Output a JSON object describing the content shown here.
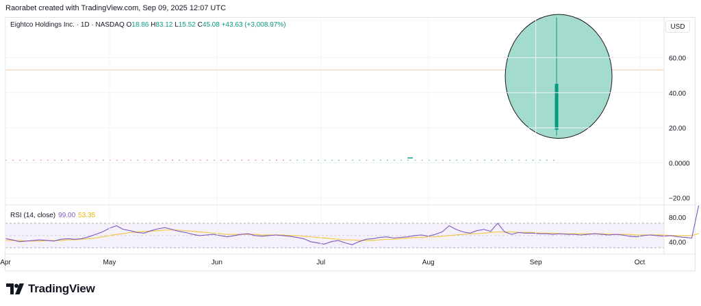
{
  "header": {
    "text": "Raorabet created with TradingView.com, Sep 09, 2025 12:07 UTC"
  },
  "legend": {
    "symbol": "Eightco Holdings Inc. · 1D · NASDAQ",
    "o_label": "O",
    "o_value": "18.86",
    "h_label": "H",
    "h_value": "83.12",
    "l_label": "L",
    "l_value": "15.52",
    "c_label": "C",
    "c_value": "45.08",
    "change": "+43.63 (+3,008.97%)"
  },
  "currency": "USD",
  "rsi_legend": {
    "label": "RSI (14, close)",
    "value": "99.00",
    "ma_value": "53.35"
  },
  "logo": {
    "text": "TradingView"
  },
  "colors": {
    "up": "#089981",
    "highlight_fill": "#a3dccd",
    "rsi": "#7e57c2",
    "rsi_ma": "#f2c94c",
    "band": "#ede7f6"
  },
  "chart_data": [
    {
      "type": "candlestick",
      "y_ticks": [
        "60.00",
        "40.00",
        "20.00",
        "0.0000",
        "−20.00"
      ],
      "y_tick_values": [
        60,
        40,
        20,
        0,
        -20
      ],
      "ylim": [
        -24,
        82
      ],
      "x_ticks": [
        "Apr",
        "May",
        "Jun",
        "Jul",
        "Aug",
        "Sep",
        "Oct"
      ],
      "xlim_days": [
        0,
        190
      ],
      "x_tick_days": [
        0,
        30,
        61,
        91,
        122,
        153,
        183
      ],
      "reference_line": 53,
      "baseline_series": {
        "start_day": 0,
        "end_day": 159,
        "value": 1.5,
        "up_day_start": 83
      },
      "last_candle": {
        "day": 159,
        "open": 18.86,
        "high": 83.12,
        "low": 15.52,
        "close": 45.08
      }
    },
    {
      "type": "line",
      "name": "RSI (14, close)",
      "y_ticks": [
        "80.00",
        "40.00"
      ],
      "y_tick_values": [
        80,
        40
      ],
      "ylim": [
        22,
        100
      ],
      "band": [
        30,
        70
      ],
      "midline": 50,
      "x_start_day": 0,
      "x_step_days": 2,
      "rsi": [
        45,
        43,
        40,
        41,
        42,
        43,
        42,
        41,
        44,
        45,
        44,
        45,
        48,
        52,
        56,
        62,
        66,
        60,
        58,
        55,
        54,
        58,
        61,
        63,
        60,
        57,
        55,
        52,
        50,
        51,
        52,
        50,
        48,
        50,
        52,
        53,
        50,
        49,
        50,
        51,
        50,
        49,
        47,
        45,
        40,
        38,
        36,
        40,
        42,
        38,
        35,
        40,
        44,
        45,
        47,
        48,
        46,
        47,
        48,
        50,
        51,
        49,
        52,
        56,
        66,
        60,
        56,
        54,
        58,
        60,
        57,
        70,
        56,
        52,
        55,
        54,
        54,
        53,
        53,
        52,
        53,
        52,
        52,
        51,
        52,
        53,
        52,
        51,
        52,
        51,
        49,
        48,
        50,
        51,
        50,
        49,
        50,
        48,
        47,
        46,
        99
      ],
      "rsi_ma": [
        42,
        42,
        42,
        41,
        41,
        41,
        42,
        42,
        42,
        43,
        43,
        44,
        45,
        46,
        48,
        50,
        52,
        53,
        55,
        56,
        57,
        57,
        58,
        59,
        59,
        59,
        58,
        57,
        56,
        55,
        54,
        53,
        52,
        52,
        52,
        52,
        52,
        51,
        51,
        51,
        51,
        50,
        50,
        49,
        48,
        47,
        46,
        45,
        44,
        43,
        43,
        42,
        42,
        42,
        43,
        44,
        44,
        45,
        46,
        47,
        47,
        48,
        48,
        49,
        50,
        51,
        52,
        53,
        53,
        54,
        55,
        56,
        56,
        56,
        55,
        55,
        55,
        54,
        54,
        54,
        53,
        53,
        53,
        53,
        53,
        53,
        53,
        52,
        52,
        52,
        52,
        51,
        51,
        51,
        51,
        51,
        50,
        50,
        50,
        50,
        53.35
      ]
    }
  ]
}
